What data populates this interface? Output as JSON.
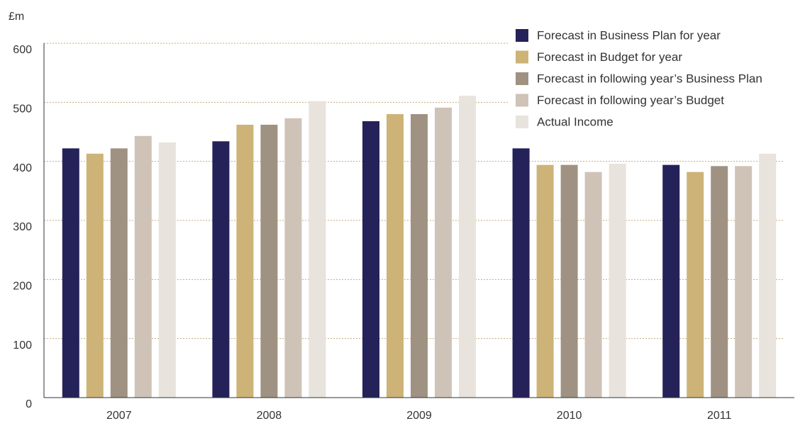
{
  "chart_data": {
    "type": "bar",
    "ylabel": "£m",
    "categories": [
      "2007",
      "2008",
      "2009",
      "2010",
      "2011"
    ],
    "series": [
      {
        "name": "Forecast in Business Plan for year",
        "color": "#252259",
        "values": [
          422,
          434,
          468,
          422,
          394
        ]
      },
      {
        "name": "Forecast in Budget for year",
        "color": "#cdb377",
        "values": [
          413,
          462,
          480,
          394,
          382
        ]
      },
      {
        "name": "Forecast in following year’s Business Plan",
        "color": "#a09282",
        "values": [
          422,
          462,
          480,
          394,
          392
        ]
      },
      {
        "name": "Forecast in following year’s Budget",
        "color": "#cfc3b8",
        "values": [
          443,
          473,
          491,
          382,
          392
        ]
      },
      {
        "name": "Actual Income",
        "color": "#e8e3dc",
        "values": [
          432,
          502,
          511,
          396,
          413
        ]
      }
    ],
    "ylim": [
      0,
      600
    ],
    "yticks": [
      0,
      100,
      200,
      300,
      400,
      500,
      600
    ],
    "grid": true,
    "legend": "upper right"
  }
}
